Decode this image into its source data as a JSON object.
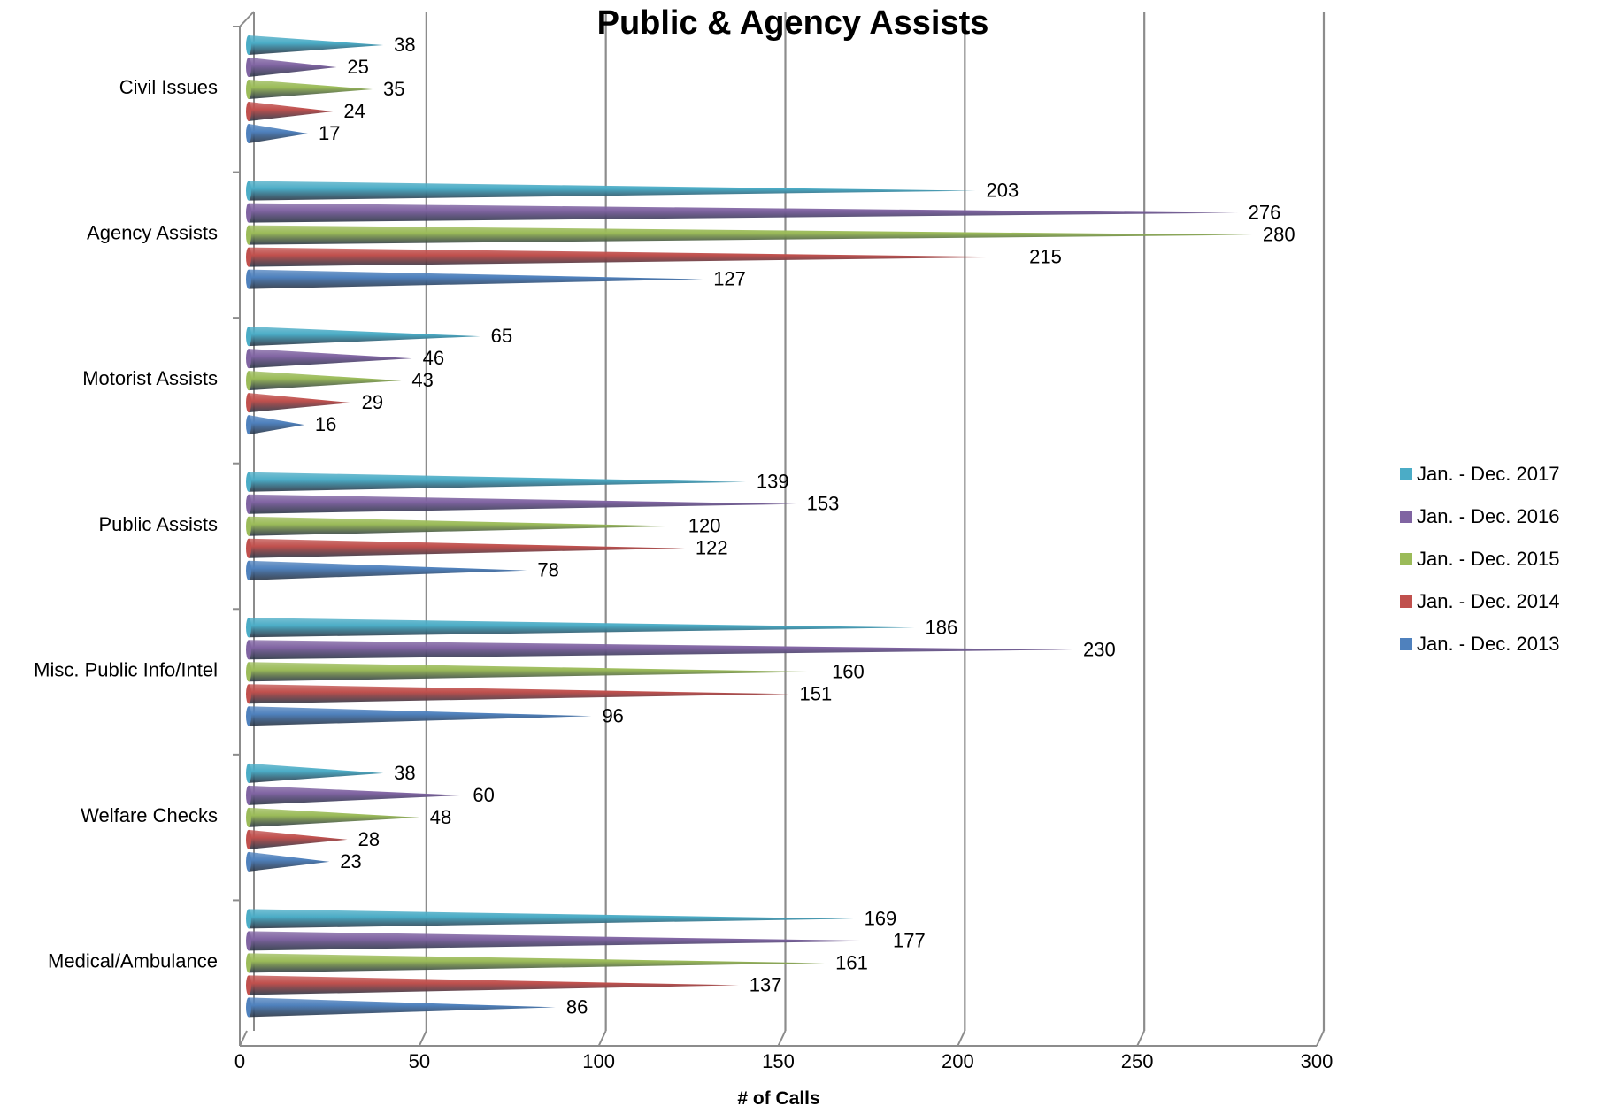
{
  "chart_data": {
    "type": "bar",
    "orientation": "horizontal",
    "title": "Public & Agency Assists",
    "xlabel": "# of Calls",
    "ylabel": "",
    "xlim": [
      0,
      300
    ],
    "x_ticks": [
      "0",
      "50",
      "100",
      "150",
      "200",
      "250",
      "300"
    ],
    "grid": true,
    "legend_position": "right",
    "categories": [
      "Civil Issues",
      "Agency Assists",
      "Motorist Assists",
      "Public Assists",
      "Misc. Public Info/Intel",
      "Welfare Checks",
      "Medical/Ambulance"
    ],
    "series": [
      {
        "name": "Jan.  - Dec. 2017",
        "color": "#4BACC6",
        "values": [
          38,
          203,
          65,
          139,
          186,
          38,
          169
        ]
      },
      {
        "name": "Jan.  - Dec. 2016",
        "color": "#8064A2",
        "values": [
          25,
          276,
          46,
          153,
          230,
          60,
          177
        ]
      },
      {
        "name": "Jan.  - Dec. 2015",
        "color": "#9BBB59",
        "values": [
          35,
          280,
          43,
          120,
          160,
          48,
          161
        ]
      },
      {
        "name": "Jan. - Dec. 2014",
        "color": "#C0504D",
        "values": [
          24,
          215,
          29,
          122,
          151,
          28,
          137
        ]
      },
      {
        "name": "Jan. - Dec. 2013",
        "color": "#4F81BD",
        "values": [
          17,
          127,
          16,
          78,
          96,
          23,
          86
        ]
      }
    ]
  }
}
